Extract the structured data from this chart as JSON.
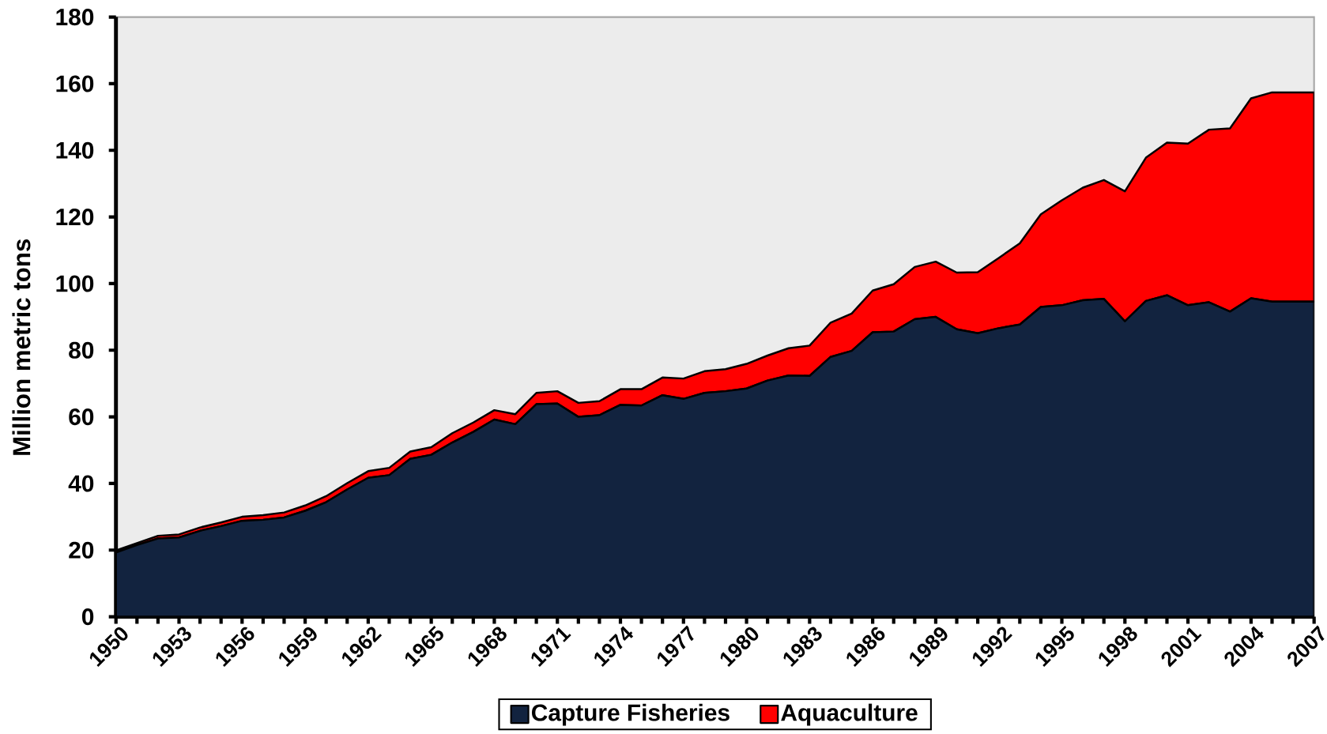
{
  "chart_data": {
    "type": "area",
    "stacked": true,
    "ylabel": "Million metric tons",
    "categories": [
      "1950",
      null,
      null,
      "1953",
      null,
      null,
      "1956",
      null,
      null,
      "1959",
      null,
      null,
      "1962",
      null,
      null,
      "1965",
      null,
      null,
      "1968",
      null,
      null,
      "1971",
      null,
      null,
      "1974",
      null,
      null,
      "1977",
      null,
      null,
      "1980",
      null,
      null,
      "1983",
      null,
      null,
      "1986",
      null,
      null,
      "1989",
      null,
      null,
      "1992",
      null,
      null,
      "1995",
      null,
      null,
      "1998",
      null,
      null,
      "2001",
      null,
      null,
      "2004",
      null,
      null,
      "2007"
    ],
    "series": [
      {
        "name": "Capture Fisheries",
        "color": "#12233f",
        "values": [
          19.3,
          21.5,
          23.5,
          23.8,
          25.8,
          27.2,
          28.8,
          29.1,
          29.8,
          31.8,
          34.4,
          38.2,
          41.7,
          42.5,
          47.4,
          48.6,
          52.3,
          55.5,
          59.2,
          57.8,
          63.8,
          64.0,
          60.0,
          60.5,
          63.6,
          63.4,
          66.5,
          65.4,
          67.2,
          67.7,
          68.5,
          70.9,
          72.4,
          72.3,
          78.0,
          79.8,
          85.4,
          85.6,
          89.3,
          90.0,
          86.3,
          85.1,
          86.6,
          87.7,
          93.0,
          93.5,
          95.0,
          95.4,
          88.7,
          94.8,
          96.5,
          93.5,
          94.4,
          91.6,
          95.6,
          94.6,
          94.6,
          94.6
        ]
      },
      {
        "name": "Aquaculture",
        "color": "#ff0000",
        "values": [
          0.6,
          0.6,
          0.8,
          0.9,
          1.0,
          1.1,
          1.2,
          1.4,
          1.5,
          1.6,
          1.8,
          1.9,
          2.0,
          2.2,
          2.2,
          2.3,
          2.8,
          2.8,
          2.8,
          3.0,
          3.4,
          3.7,
          4.2,
          4.2,
          4.7,
          4.9,
          5.3,
          6.1,
          6.5,
          6.6,
          7.4,
          7.5,
          8.2,
          9.1,
          10.3,
          11.2,
          12.5,
          14.2,
          15.7,
          16.6,
          17.0,
          18.3,
          21.1,
          24.4,
          27.8,
          31.5,
          33.8,
          35.7,
          39.0,
          43.0,
          45.8,
          48.5,
          51.8,
          55.0,
          60.0,
          62.8,
          62.8,
          62.8
        ]
      }
    ],
    "ylim": [
      0,
      180
    ],
    "yticks": [
      0,
      20,
      40,
      60,
      80,
      100,
      120,
      140,
      160,
      180
    ],
    "legend": "bottom"
  }
}
